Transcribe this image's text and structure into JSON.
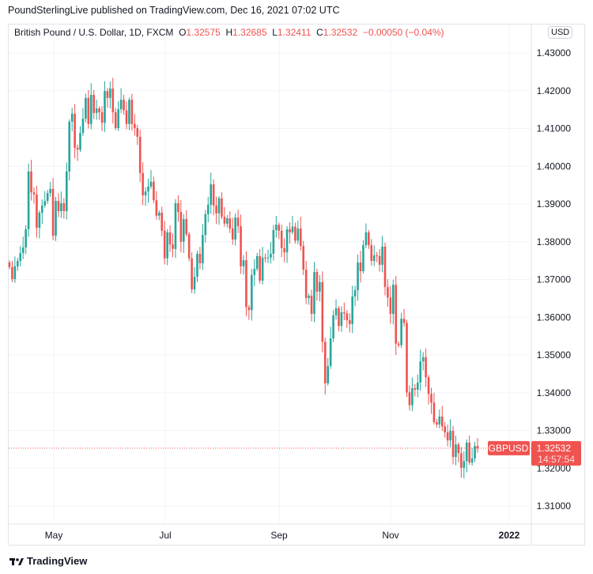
{
  "header": {
    "published": "PoundSterlingLive published on TradingView.com, Dec 16, 2021 07:02 UTC"
  },
  "legend": {
    "symbol": "British Pound / U.S. Dollar, 1D, FXCM",
    "o_label": "O",
    "o": "1.32575",
    "h_label": "H",
    "h": "1.32685",
    "l_label": "L",
    "l": "1.32411",
    "c_label": "C",
    "c": "1.32532",
    "change": "−0.00050 (−0.04%)"
  },
  "currency": "USD",
  "price_tag": {
    "symbol": "GBPUSD",
    "price": "1.32532",
    "countdown": "14:57:54"
  },
  "logo": "TradingView",
  "colors": {
    "up": "#26a69a",
    "down": "#ef5350",
    "grid": "#f0f3fa"
  },
  "chart_data": {
    "type": "candlestick",
    "title": "British Pound / U.S. Dollar, 1D, FXCM",
    "ylim": [
      1.305,
      1.4355
    ],
    "y_ticks": [
      "1.31000",
      "1.32000",
      "1.33000",
      "1.34000",
      "1.35000",
      "1.36000",
      "1.37000",
      "1.38000",
      "1.39000",
      "1.40000",
      "1.41000",
      "1.42000",
      "1.43000"
    ],
    "x_ticks": [
      "May",
      "Jul",
      "Sep",
      "Nov",
      "2022"
    ],
    "grid": true,
    "first_open": 1.3745,
    "closes": [
      1.3733,
      1.3701,
      1.3735,
      1.3749,
      1.377,
      1.3785,
      1.3833,
      1.3986,
      1.3931,
      1.3925,
      1.3837,
      1.3877,
      1.3896,
      1.3908,
      1.3929,
      1.394,
      1.3816,
      1.3908,
      1.3881,
      1.3902,
      1.3881,
      1.3986,
      1.4118,
      1.4139,
      1.4049,
      1.4044,
      1.4088,
      1.4126,
      1.4181,
      1.4112,
      1.4189,
      1.4141,
      1.4153,
      1.4143,
      1.4115,
      1.4199,
      1.4181,
      1.4206,
      1.4143,
      1.4101,
      1.4151,
      1.4176,
      1.4148,
      1.4112,
      1.4176,
      1.4112,
      1.4101,
      1.4078,
      1.3982,
      1.3923,
      1.3933,
      1.3946,
      1.3959,
      1.391,
      1.3869,
      1.3877,
      1.3829,
      1.3756,
      1.3825,
      1.3793,
      1.3781,
      1.3902,
      1.3879,
      1.38,
      1.386,
      1.382,
      1.3756,
      1.3674,
      1.3707,
      1.3768,
      1.3743,
      1.3818,
      1.3873,
      1.3898,
      1.3952,
      1.3896,
      1.3875,
      1.3915,
      1.3866,
      1.3848,
      1.3862,
      1.3835,
      1.3806,
      1.3864,
      1.3841,
      1.3735,
      1.3751,
      1.3627,
      1.3619,
      1.3712,
      1.3728,
      1.3762,
      1.3697,
      1.3758,
      1.3757,
      1.3758,
      1.3768,
      1.3831,
      1.3845,
      1.3829,
      1.3783,
      1.3772,
      1.3833,
      1.3825,
      1.384,
      1.3803,
      1.3835,
      1.3789,
      1.3726,
      1.3651,
      1.3657,
      1.3609,
      1.372,
      1.3668,
      1.3693,
      1.3535,
      1.3425,
      1.3471,
      1.3544,
      1.3605,
      1.3624,
      1.3577,
      1.3613,
      1.361,
      1.3592,
      1.3582,
      1.3655,
      1.3672,
      1.3745,
      1.3722,
      1.3791,
      1.3825,
      1.3791,
      1.3749,
      1.3764,
      1.3762,
      1.3739,
      1.3787,
      1.368,
      1.3652,
      1.3609,
      1.3686,
      1.353,
      1.3526,
      1.3596,
      1.3585,
      1.3401,
      1.3367,
      1.3412,
      1.3408,
      1.3427,
      1.3483,
      1.3494,
      1.3441,
      1.3397,
      1.3374,
      1.3322,
      1.3316,
      1.3337,
      1.3311,
      1.3295,
      1.3274,
      1.3299,
      1.323,
      1.3263,
      1.324,
      1.3201,
      1.3219,
      1.3268,
      1.3215,
      1.3226,
      1.3259,
      1.3253
    ],
    "last_price": 1.32532
  }
}
